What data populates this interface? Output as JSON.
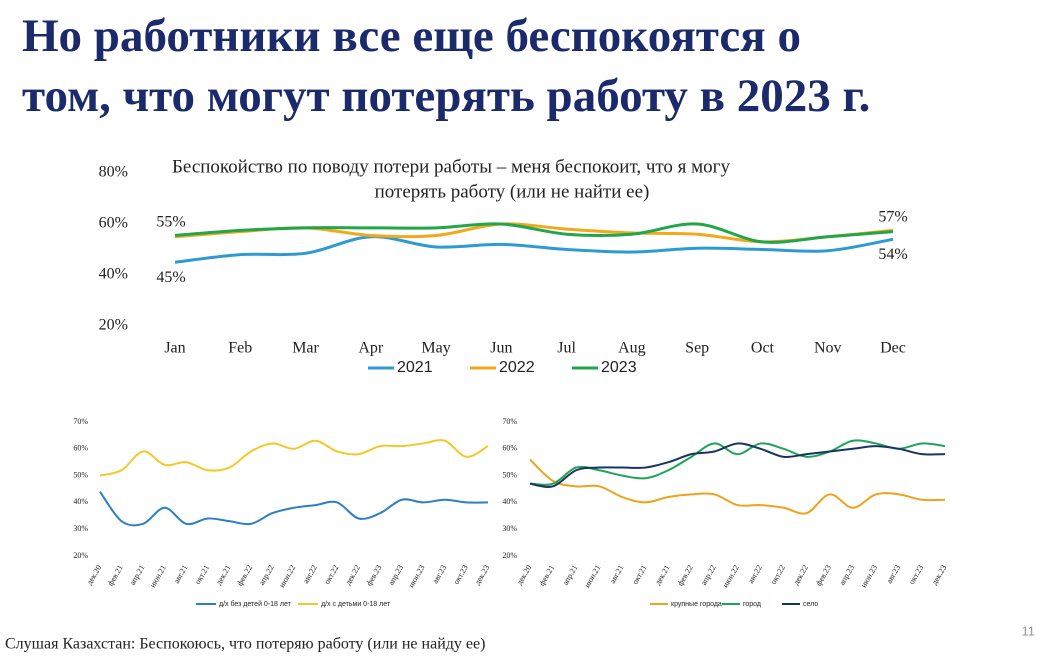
{
  "title": [
    "Но работники все еще беспокоятся о",
    "том, что могут потерять работу в 2023 г."
  ],
  "chart_data": [
    {
      "type": "line",
      "title": [
        "Беспокойство по поводу потери работы – меня беспокоит, что я могу",
        "потерять работу (или не найти ее)"
      ],
      "categories": [
        "Jan",
        "Feb",
        "Mar",
        "Apr",
        "May",
        "Jun",
        "Jul",
        "Aug",
        "Sep",
        "Oct",
        "Nov",
        "Dec"
      ],
      "ylim": [
        20,
        80
      ],
      "yticks": [
        {
          "value": 20,
          "label": "20%"
        },
        {
          "value": 40,
          "label": "40%"
        },
        {
          "value": 60,
          "label": "60%"
        },
        {
          "value": 80,
          "label": "80%"
        }
      ],
      "legend": "bottom",
      "series": [
        {
          "name": "2021",
          "color": "#2e9bd0",
          "values": [
            45,
            48,
            48.5,
            55,
            51,
            52,
            50,
            49,
            50.5,
            50,
            49.5,
            54
          ],
          "value_labels": [
            "45%",
            null,
            null,
            null,
            null,
            null,
            null,
            null,
            null,
            null,
            null,
            "54%"
          ]
        },
        {
          "name": "2022",
          "color": "#f2a81d",
          "values": [
            55,
            57,
            58.5,
            55.5,
            55.5,
            60,
            58,
            56.5,
            56,
            53,
            55,
            57.5
          ],
          "value_labels": [
            "55%",
            null,
            null,
            null,
            null,
            null,
            null,
            null,
            null,
            null,
            null,
            null
          ]
        },
        {
          "name": "2023",
          "color": "#22a64a",
          "values": [
            55.5,
            57.5,
            58.5,
            58.5,
            58.5,
            60,
            56,
            56,
            60,
            53,
            55,
            57
          ],
          "value_labels": [
            null,
            null,
            null,
            null,
            null,
            null,
            null,
            null,
            null,
            null,
            null,
            "57%"
          ]
        }
      ]
    },
    {
      "type": "line",
      "categories": [
        "дек.20",
        "фев.21",
        "апр.21",
        "июн.21",
        "авг.21",
        "окт.21",
        "дек.21",
        "фев.22",
        "апр.22",
        "июн.22",
        "авг.22",
        "окт.22",
        "дек.22",
        "фев.23",
        "апр.23",
        "июн.23",
        "авг.23",
        "окт.23",
        "дек.23"
      ],
      "ylim": [
        20,
        70
      ],
      "yticks": [
        {
          "value": 20,
          "label": "20%"
        },
        {
          "value": 30,
          "label": "30%"
        },
        {
          "value": 40,
          "label": "40%"
        },
        {
          "value": 50,
          "label": "50%"
        },
        {
          "value": 60,
          "label": "60%"
        },
        {
          "value": 70,
          "label": "70%"
        }
      ],
      "legend": "bottom",
      "series": [
        {
          "name": "д/х без детей 0-18 лет",
          "color": "#2e7fc1",
          "values": [
            44,
            33,
            32,
            38,
            32,
            34,
            33,
            32,
            36,
            38,
            39,
            40,
            34,
            36,
            41,
            40,
            41,
            40,
            40
          ]
        },
        {
          "name": "д/х с детьми 0-18 лет",
          "color": "#f2c92a",
          "values": [
            50,
            52,
            59,
            54,
            55,
            52,
            53,
            59,
            62,
            60,
            63,
            59,
            58,
            61,
            61,
            62,
            63,
            57,
            61
          ]
        }
      ]
    },
    {
      "type": "line",
      "categories": [
        "дек.20",
        "фев.21",
        "апр.21",
        "июн.21",
        "авг.21",
        "окт.21",
        "дек.21",
        "фев.22",
        "апр.22",
        "июн.22",
        "авг.22",
        "окт.22",
        "дек.22",
        "фев.23",
        "апр.23",
        "июн.23",
        "авг.23",
        "окт.23",
        "дек.23"
      ],
      "ylim": [
        20,
        70
      ],
      "yticks": [
        {
          "value": 20,
          "label": "20%"
        },
        {
          "value": 30,
          "label": "30%"
        },
        {
          "value": 40,
          "label": "40%"
        },
        {
          "value": 50,
          "label": "50%"
        },
        {
          "value": 60,
          "label": "60%"
        },
        {
          "value": 70,
          "label": "70%"
        }
      ],
      "legend": "bottom",
      "series": [
        {
          "name": "крупные города",
          "color": "#f0a21f",
          "values": [
            56,
            48,
            46,
            46,
            42,
            40,
            42,
            43,
            43,
            39,
            39,
            38,
            36,
            43,
            38,
            43,
            43,
            41,
            41
          ]
        },
        {
          "name": "город",
          "color": "#1fa35a",
          "values": [
            47,
            47,
            53,
            52,
            50,
            49,
            52,
            57,
            62,
            58,
            62,
            60,
            57,
            59,
            63,
            62,
            60,
            62,
            61
          ]
        },
        {
          "name": "село",
          "color": "#17365d",
          "values": [
            47,
            46,
            52,
            53,
            53,
            53,
            55,
            58,
            59,
            62,
            60,
            57,
            58,
            59,
            60,
            61,
            60,
            58,
            58
          ]
        }
      ]
    }
  ],
  "footer": "Слушая Казахстан: Беспокоюсь, что потеряю работу (или не найду ее)",
  "page_number": "11"
}
